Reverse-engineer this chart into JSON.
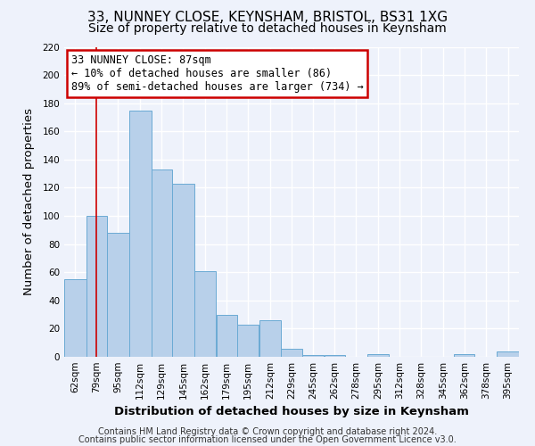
{
  "title": "33, NUNNEY CLOSE, KEYNSHAM, BRISTOL, BS31 1XG",
  "subtitle": "Size of property relative to detached houses in Keynsham",
  "xlabel": "Distribution of detached houses by size in Keynsham",
  "ylabel": "Number of detached properties",
  "bar_labels": [
    "62sqm",
    "79sqm",
    "95sqm",
    "112sqm",
    "129sqm",
    "145sqm",
    "162sqm",
    "179sqm",
    "195sqm",
    "212sqm",
    "229sqm",
    "245sqm",
    "262sqm",
    "278sqm",
    "295sqm",
    "312sqm",
    "328sqm",
    "345sqm",
    "362sqm",
    "378sqm",
    "395sqm"
  ],
  "bar_values": [
    55,
    100,
    88,
    175,
    133,
    123,
    61,
    30,
    23,
    26,
    6,
    1,
    1,
    0,
    2,
    0,
    0,
    0,
    2,
    0,
    4
  ],
  "bar_color": "#b8d0ea",
  "bar_edge_color": "#6aaad4",
  "property_line_x": 87,
  "bin_edges": [
    62,
    79,
    95,
    112,
    129,
    145,
    162,
    179,
    195,
    212,
    229,
    245,
    262,
    278,
    295,
    312,
    328,
    345,
    362,
    378,
    395,
    412
  ],
  "annotation_title": "33 NUNNEY CLOSE: 87sqm",
  "annotation_line1": "← 10% of detached houses are smaller (86)",
  "annotation_line2": "89% of semi-detached houses are larger (734) →",
  "annotation_box_facecolor": "#ffffff",
  "annotation_box_edgecolor": "#cc0000",
  "vline_color": "#cc0000",
  "ylim": [
    0,
    220
  ],
  "yticks": [
    0,
    20,
    40,
    60,
    80,
    100,
    120,
    140,
    160,
    180,
    200,
    220
  ],
  "footer1": "Contains HM Land Registry data © Crown copyright and database right 2024.",
  "footer2": "Contains public sector information licensed under the Open Government Licence v3.0.",
  "background_color": "#eef2fb",
  "grid_color": "#ffffff",
  "title_fontsize": 11,
  "subtitle_fontsize": 10,
  "axis_label_fontsize": 9.5,
  "tick_fontsize": 7.5,
  "annotation_fontsize": 8.5,
  "footer_fontsize": 7
}
